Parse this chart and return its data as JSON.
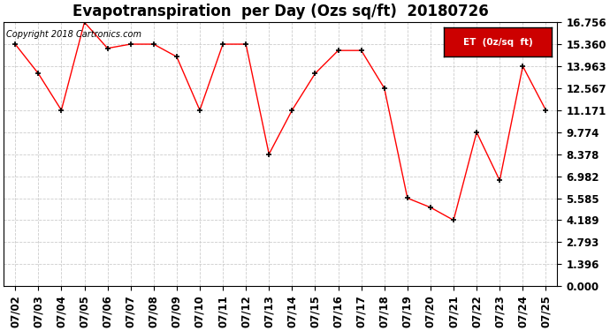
{
  "title": "Evapotranspiration  per Day (Ozs sq/ft)  20180726",
  "copyright": "Copyright 2018 Cartronics.com",
  "legend_label": "ET  (0z/sq  ft)",
  "dates": [
    "07/02",
    "07/03",
    "07/04",
    "07/05",
    "07/06",
    "07/07",
    "07/08",
    "07/09",
    "07/10",
    "07/11",
    "07/12",
    "07/13",
    "07/14",
    "07/15",
    "07/16",
    "07/17",
    "07/18",
    "07/19",
    "07/20",
    "07/21",
    "07/22",
    "07/23",
    "07/24",
    "07/25"
  ],
  "values": [
    15.36,
    13.5,
    11.17,
    16.75,
    15.1,
    15.36,
    15.36,
    14.56,
    11.17,
    15.36,
    15.36,
    8.38,
    11.17,
    13.5,
    14.96,
    14.96,
    12.56,
    5.59,
    5.0,
    4.19,
    9.77,
    6.71,
    13.96,
    11.17
  ],
  "line_color": "red",
  "marker_color": "black",
  "background_color": "#ffffff",
  "grid_color": "#cccccc",
  "yticks": [
    0.0,
    1.396,
    2.793,
    4.189,
    5.585,
    6.982,
    8.378,
    9.774,
    11.171,
    12.567,
    13.963,
    15.36,
    16.756
  ],
  "ylim": [
    0,
    16.756
  ],
  "legend_bg": "#cc0000",
  "legend_text_color": "#ffffff",
  "title_fontsize": 12,
  "copyright_fontsize": 7,
  "tick_fontsize": 8.5
}
